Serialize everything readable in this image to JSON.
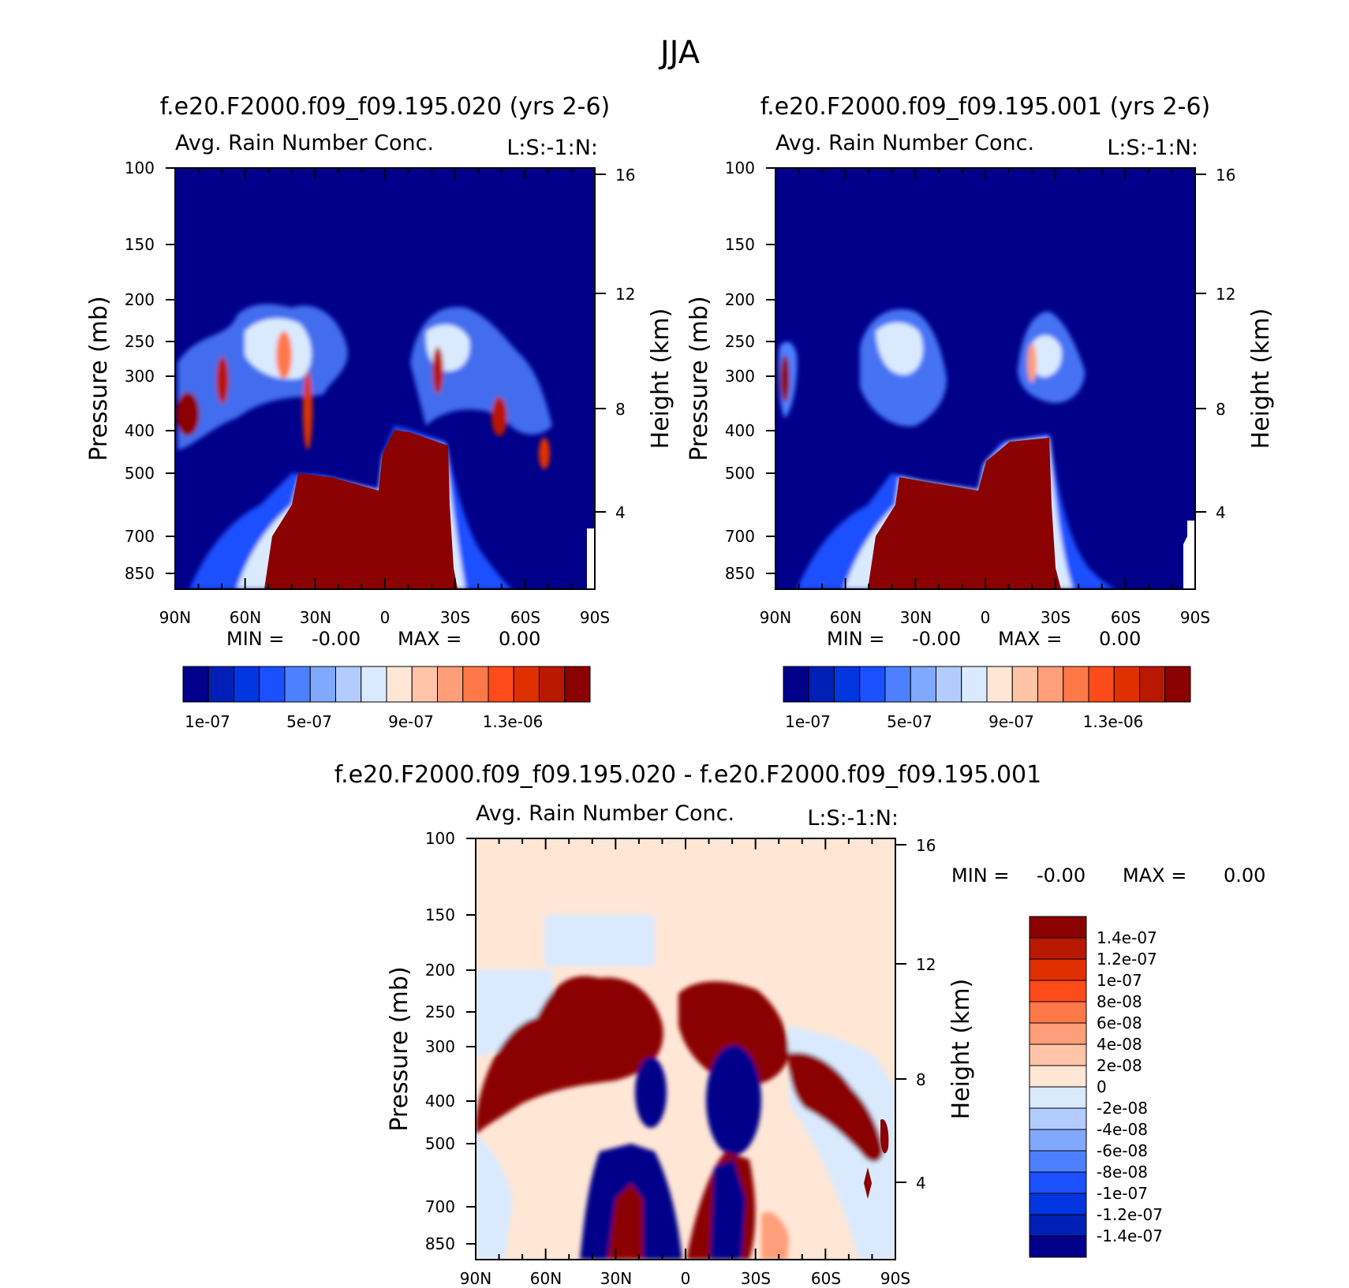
{
  "figure": {
    "season": "JJA"
  },
  "chart_data": [
    {
      "type": "heatmap",
      "title": "f.e20.F2000.f09_f09.195.020 (yrs 2-6)",
      "subtitle": "Avg. Rain Number Conc.",
      "level_text": "L:S:-1:N:",
      "ylabel": "Pressure (mb)",
      "y2label": "Height (km)",
      "x_ticks": [
        "90N",
        "60N",
        "30N",
        "0",
        "30S",
        "60S",
        "90S"
      ],
      "y_ticks": [
        "100",
        "150",
        "200",
        "250",
        "300",
        "400",
        "500",
        "700",
        "850"
      ],
      "y2_ticks": [
        "16",
        "12",
        "8",
        "4"
      ],
      "ylim": [
        100,
        900
      ],
      "min_text": "MIN =",
      "min_value": "-0.00",
      "max_text": "MAX =",
      "max_value": "0.00",
      "colorbar": {
        "orientation": "horizontal",
        "labels": [
          "1e-07",
          "5e-07",
          "9e-07",
          "1.3e-06"
        ],
        "colors": [
          "#00008b",
          "#0020b5",
          "#0035e0",
          "#1a50ff",
          "#4d80ff",
          "#80a8ff",
          "#b3ccff",
          "#d9eaff",
          "#ffe6d5",
          "#ffc4a8",
          "#ff9e78",
          "#ff7848",
          "#ff4a1a",
          "#e03000",
          "#b81800",
          "#8b0000"
        ]
      }
    },
    {
      "type": "heatmap",
      "title": "f.e20.F2000.f09_f09.195.001 (yrs 2-6)",
      "subtitle": "Avg. Rain Number Conc.",
      "level_text": "L:S:-1:N:",
      "ylabel": "Pressure (mb)",
      "y2label": "Height (km)",
      "x_ticks": [
        "90N",
        "60N",
        "30N",
        "0",
        "30S",
        "60S",
        "90S"
      ],
      "y_ticks": [
        "100",
        "150",
        "200",
        "250",
        "300",
        "400",
        "500",
        "700",
        "850"
      ],
      "y2_ticks": [
        "16",
        "12",
        "8",
        "4"
      ],
      "ylim": [
        100,
        900
      ],
      "min_text": "MIN =",
      "min_value": "-0.00",
      "max_text": "MAX =",
      "max_value": "0.00",
      "colorbar": {
        "orientation": "horizontal",
        "labels": [
          "1e-07",
          "5e-07",
          "9e-07",
          "1.3e-06"
        ],
        "colors": [
          "#00008b",
          "#0020b5",
          "#0035e0",
          "#1a50ff",
          "#4d80ff",
          "#80a8ff",
          "#b3ccff",
          "#d9eaff",
          "#ffe6d5",
          "#ffc4a8",
          "#ff9e78",
          "#ff7848",
          "#ff4a1a",
          "#e03000",
          "#b81800",
          "#8b0000"
        ]
      }
    },
    {
      "type": "heatmap",
      "title": "f.e20.F2000.f09_f09.195.020 - f.e20.F2000.f09_f09.195.001",
      "subtitle": "Avg. Rain Number Conc.",
      "level_text": "L:S:-1:N:",
      "ylabel": "Pressure (mb)",
      "y2label": "Height (km)",
      "x_ticks": [
        "90N",
        "60N",
        "30N",
        "0",
        "30S",
        "60S",
        "90S"
      ],
      "y_ticks": [
        "100",
        "150",
        "200",
        "250",
        "300",
        "400",
        "500",
        "700",
        "850"
      ],
      "y2_ticks": [
        "16",
        "12",
        "8",
        "4"
      ],
      "ylim": [
        100,
        900
      ],
      "min_text": "MIN =",
      "min_value": "-0.00",
      "max_text": "MAX =",
      "max_value": "0.00",
      "colorbar": {
        "orientation": "vertical",
        "labels": [
          "1.4e-07",
          "1.2e-07",
          "1e-07",
          "8e-08",
          "6e-08",
          "4e-08",
          "2e-08",
          "0",
          "-2e-08",
          "-4e-08",
          "-6e-08",
          "-8e-08",
          "-1e-07",
          "-1.2e-07",
          "-1.4e-07"
        ],
        "colors": [
          "#8b0000",
          "#b81800",
          "#e03000",
          "#ff4a1a",
          "#ff7848",
          "#ff9e78",
          "#ffc4a8",
          "#ffe6d5",
          "#d9eaff",
          "#b3ccff",
          "#80a8ff",
          "#4d80ff",
          "#1a50ff",
          "#0035e0",
          "#0020b5",
          "#00008b"
        ]
      }
    }
  ]
}
